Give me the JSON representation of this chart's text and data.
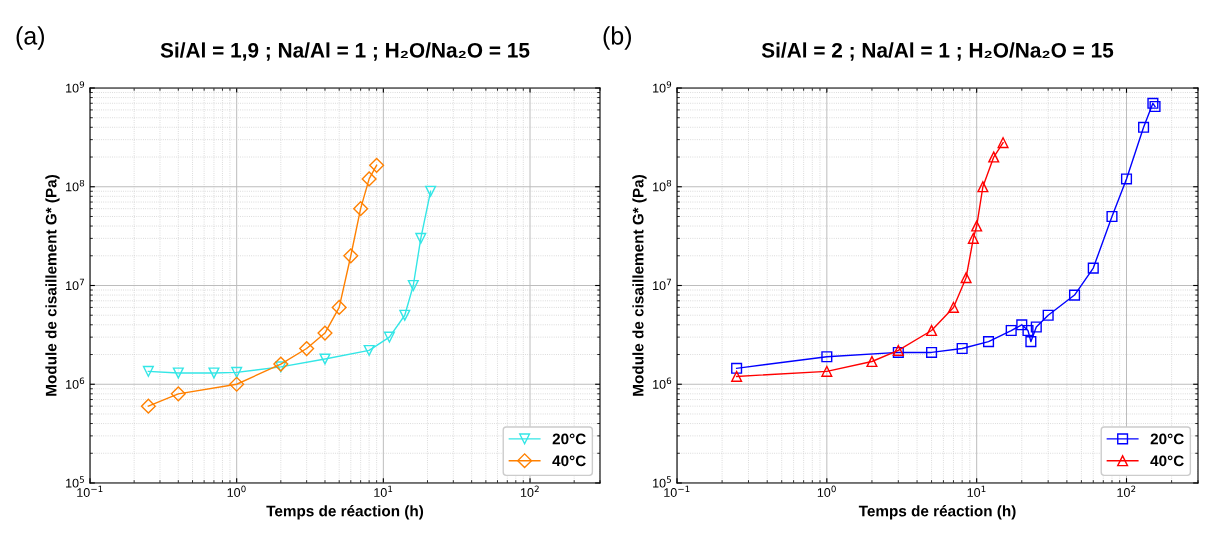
{
  "chart_data": [
    {
      "type": "line",
      "title": "Si/Al = 1,9 ; Na/Al = 1 ; H₂O/Na₂O = 15",
      "xlabel": "Temps de réaction (h)",
      "ylabel": "Module de cisaillement G* (Pa)",
      "annotations": [
        "(a)"
      ],
      "log": "xy",
      "grid": true,
      "legend": "bottom right",
      "xlim": [
        0.1,
        300
      ],
      "xticks": [
        {
          "value": 0.1,
          "label": "10$^{−1}$"
        },
        {
          "value": 1,
          "label": "10$^{0}$"
        },
        {
          "value": 10,
          "label": "10$^{1}$"
        },
        {
          "value": 100,
          "label": "10$^{2}$"
        }
      ],
      "ylim": [
        100000,
        1000000000
      ],
      "yticks": [
        {
          "value": 100000,
          "label": "10$^{5}$"
        },
        {
          "value": 1000000,
          "label": "10$^{6}$"
        },
        {
          "value": 10000000,
          "label": "10$^{7}$"
        },
        {
          "value": 100000000,
          "label": "10$^{8}$"
        },
        {
          "value": 1000000000,
          "label": "10$^{9}$"
        }
      ],
      "series": [
        {
          "name": "20°C",
          "color": "#33e6e6",
          "marker": "triangle_down",
          "x": [
            0.25,
            0.4,
            0.7,
            1,
            2,
            4,
            8,
            11,
            14,
            16,
            18,
            21
          ],
          "values": [
            1350000,
            1300000,
            1300000,
            1320000,
            1500000,
            1800000,
            2200000,
            3000000,
            5000000,
            10000000,
            30000000,
            90000000
          ]
        },
        {
          "name": "40°C",
          "color": "#ff8000",
          "marker": "diamond",
          "x": [
            0.25,
            0.4,
            1,
            2,
            3,
            4,
            5,
            6,
            7,
            8,
            9
          ],
          "values": [
            600000,
            800000,
            1000000,
            1600000,
            2300000,
            3300000,
            6000000,
            20000000,
            60000000,
            120000000,
            165000000
          ]
        }
      ]
    },
    {
      "type": "line",
      "title": "Si/Al = 2 ; Na/Al = 1 ; H₂O/Na₂O = 15",
      "xlabel": "Temps de réaction (h)",
      "ylabel": "Module de cisaillement G* (Pa)",
      "annotations": [
        "(b)"
      ],
      "log": "xy",
      "grid": true,
      "legend": "bottom right",
      "xlim": [
        0.1,
        300
      ],
      "xticks": [
        {
          "value": 0.1,
          "label": "10$^{−1}$"
        },
        {
          "value": 1,
          "label": "10$^{0}$"
        },
        {
          "value": 10,
          "label": "10$^{1}$"
        },
        {
          "value": 100,
          "label": "10$^{2}$"
        }
      ],
      "ylim": [
        100000,
        1000000000
      ],
      "yticks": [
        {
          "value": 100000,
          "label": "10$^{5}$"
        },
        {
          "value": 1000000,
          "label": "10$^{6}$"
        },
        {
          "value": 10000000,
          "label": "10$^{7}$"
        },
        {
          "value": 100000000,
          "label": "10$^{8}$"
        },
        {
          "value": 1000000000,
          "label": "10$^{9}$"
        }
      ],
      "series": [
        {
          "name": "20°C",
          "color": "#0000ff",
          "marker": "square",
          "x": [
            0.25,
            1,
            3,
            5,
            8,
            12,
            17,
            20,
            22,
            23,
            25,
            30,
            45,
            60,
            80,
            100,
            130,
            150,
            155
          ],
          "values": [
            1450000,
            1900000,
            2100000,
            2100000,
            2300000,
            2700000,
            3500000,
            4000000,
            3500000,
            2700000,
            3800000,
            5000000,
            8000000,
            15000000,
            50000000,
            120000000,
            400000000,
            700000000,
            650000000
          ]
        },
        {
          "name": "40°C",
          "color": "#ff0000",
          "marker": "triangle",
          "x": [
            0.25,
            1,
            2,
            3,
            5,
            7,
            8.5,
            9.5,
            10,
            11,
            13,
            15
          ],
          "values": [
            1200000,
            1350000,
            1700000,
            2200000,
            3500000,
            6000000,
            12000000,
            30000000,
            40000000,
            100000000,
            200000000,
            280000000
          ]
        }
      ]
    }
  ]
}
